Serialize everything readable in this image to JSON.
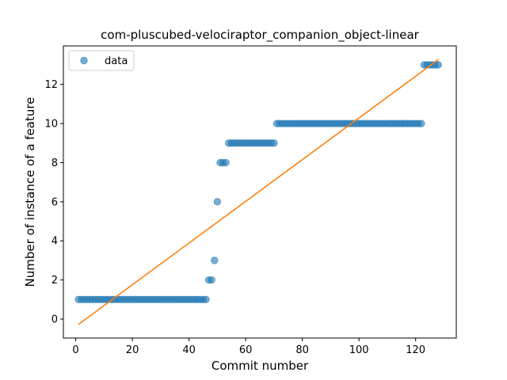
{
  "chart_data": {
    "type": "scatter",
    "title": "com-pluscubed-velociraptor_companion_object-linear",
    "xlabel": "Commit number",
    "ylabel": "Number of instance of a feature",
    "xlim": [
      -4.35,
      134.35
    ],
    "ylim": [
      -0.97,
      13.97
    ],
    "xticks": [
      0,
      20,
      40,
      60,
      80,
      100,
      120
    ],
    "yticks": [
      0,
      2,
      4,
      6,
      8,
      10,
      12
    ],
    "legend": {
      "position": "top-left",
      "entries": [
        "data"
      ]
    },
    "grid": false,
    "colors": {
      "points": "#1f77b4",
      "fit_line": "#ff7f0e"
    },
    "series": [
      {
        "name": "data",
        "kind": "points",
        "points": [
          [
            1,
            1
          ],
          [
            2,
            1
          ],
          [
            3,
            1
          ],
          [
            4,
            1
          ],
          [
            5,
            1
          ],
          [
            6,
            1
          ],
          [
            7,
            1
          ],
          [
            8,
            1
          ],
          [
            9,
            1
          ],
          [
            10,
            1
          ],
          [
            11,
            1
          ],
          [
            12,
            1
          ],
          [
            13,
            1
          ],
          [
            14,
            1
          ],
          [
            15,
            1
          ],
          [
            16,
            1
          ],
          [
            17,
            1
          ],
          [
            18,
            1
          ],
          [
            19,
            1
          ],
          [
            20,
            1
          ],
          [
            21,
            1
          ],
          [
            22,
            1
          ],
          [
            23,
            1
          ],
          [
            24,
            1
          ],
          [
            25,
            1
          ],
          [
            26,
            1
          ],
          [
            27,
            1
          ],
          [
            28,
            1
          ],
          [
            29,
            1
          ],
          [
            30,
            1
          ],
          [
            31,
            1
          ],
          [
            32,
            1
          ],
          [
            33,
            1
          ],
          [
            34,
            1
          ],
          [
            35,
            1
          ],
          [
            36,
            1
          ],
          [
            37,
            1
          ],
          [
            38,
            1
          ],
          [
            39,
            1
          ],
          [
            40,
            1
          ],
          [
            41,
            1
          ],
          [
            42,
            1
          ],
          [
            43,
            1
          ],
          [
            44,
            1
          ],
          [
            45,
            1
          ],
          [
            46,
            1
          ],
          [
            47,
            2
          ],
          [
            48,
            2
          ],
          [
            49,
            3
          ],
          [
            50,
            6
          ],
          [
            51,
            8
          ],
          [
            52,
            8
          ],
          [
            53,
            8
          ],
          [
            54,
            9
          ],
          [
            55,
            9
          ],
          [
            56,
            9
          ],
          [
            57,
            9
          ],
          [
            58,
            9
          ],
          [
            59,
            9
          ],
          [
            60,
            9
          ],
          [
            61,
            9
          ],
          [
            62,
            9
          ],
          [
            63,
            9
          ],
          [
            64,
            9
          ],
          [
            65,
            9
          ],
          [
            66,
            9
          ],
          [
            67,
            9
          ],
          [
            68,
            9
          ],
          [
            69,
            9
          ],
          [
            70,
            9
          ],
          [
            71,
            10
          ],
          [
            72,
            10
          ],
          [
            73,
            10
          ],
          [
            74,
            10
          ],
          [
            75,
            10
          ],
          [
            76,
            10
          ],
          [
            77,
            10
          ],
          [
            78,
            10
          ],
          [
            79,
            10
          ],
          [
            80,
            10
          ],
          [
            81,
            10
          ],
          [
            82,
            10
          ],
          [
            83,
            10
          ],
          [
            84,
            10
          ],
          [
            85,
            10
          ],
          [
            86,
            10
          ],
          [
            87,
            10
          ],
          [
            88,
            10
          ],
          [
            89,
            10
          ],
          [
            90,
            10
          ],
          [
            91,
            10
          ],
          [
            92,
            10
          ],
          [
            93,
            10
          ],
          [
            94,
            10
          ],
          [
            95,
            10
          ],
          [
            96,
            10
          ],
          [
            97,
            10
          ],
          [
            98,
            10
          ],
          [
            99,
            10
          ],
          [
            100,
            10
          ],
          [
            101,
            10
          ],
          [
            102,
            10
          ],
          [
            103,
            10
          ],
          [
            104,
            10
          ],
          [
            105,
            10
          ],
          [
            106,
            10
          ],
          [
            107,
            10
          ],
          [
            108,
            10
          ],
          [
            109,
            10
          ],
          [
            110,
            10
          ],
          [
            111,
            10
          ],
          [
            112,
            10
          ],
          [
            113,
            10
          ],
          [
            114,
            10
          ],
          [
            115,
            10
          ],
          [
            116,
            10
          ],
          [
            117,
            10
          ],
          [
            118,
            10
          ],
          [
            119,
            10
          ],
          [
            120,
            10
          ],
          [
            121,
            10
          ],
          [
            122,
            10
          ],
          [
            123,
            13
          ],
          [
            124,
            13
          ],
          [
            125,
            13
          ],
          [
            126,
            13
          ],
          [
            127,
            13
          ],
          [
            128,
            13
          ]
        ]
      },
      {
        "kind": "line",
        "points": [
          [
            1,
            -0.27
          ],
          [
            128,
            13.27
          ]
        ]
      }
    ]
  }
}
